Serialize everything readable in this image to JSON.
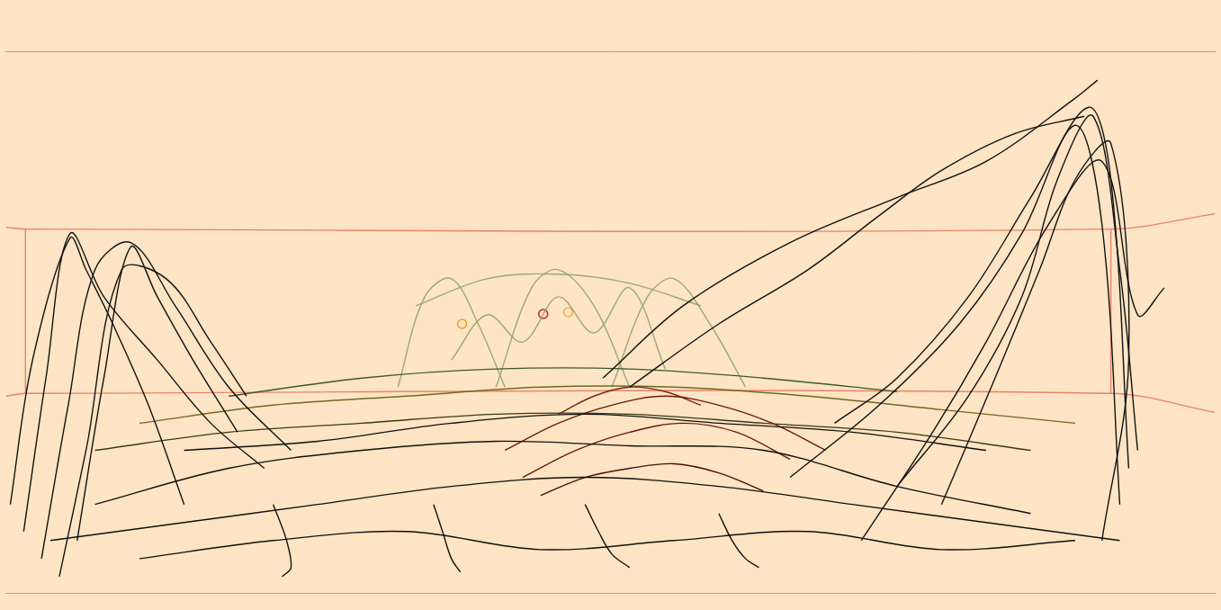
{
  "chart_data": {
    "type": "line",
    "xlim": [
      0,
      1357
    ],
    "ylim": [
      0,
      600
    ],
    "xticks": [
      0,
      1357
    ],
    "yticks": [
      0,
      600
    ],
    "grid": false,
    "tick_labels": false,
    "series": [
      {
        "color": "#111111",
        "x": [
          20,
          45,
          72,
          110,
          170,
          230,
          290
        ],
        "values": [
          68,
          238,
          398,
          328,
          258,
          188,
          138
        ]
      },
      {
        "color": "#111111",
        "x": [
          40,
          70,
          100,
          140,
          190,
          250,
          320
        ],
        "values": [
          38,
          208,
          358,
          388,
          318,
          228,
          158
        ]
      },
      {
        "color": "#111111",
        "x": [
          5,
          30,
          72,
          90,
          120,
          160,
          200
        ],
        "values": [
          98,
          258,
          393,
          358,
          298,
          208,
          98
        ]
      },
      {
        "color": "#111111",
        "x": [
          80,
          110,
          140,
          170,
          210,
          260
        ],
        "values": [
          58,
          238,
          383,
          328,
          258,
          178
        ]
      },
      {
        "color": "#111111",
        "x": [
          60,
          90,
          130,
          180,
          230,
          270
        ],
        "values": [
          18,
          158,
          358,
          348,
          278,
          218
        ]
      },
      {
        "color": "#111111",
        "x": [
          930,
          1000,
          1080,
          1150,
          1215,
          1240,
          1260
        ],
        "values": [
          188,
          238,
          328,
          438,
          538,
          458,
          138
        ]
      },
      {
        "color": "#111111",
        "x": [
          880,
          980,
          1070,
          1140,
          1200,
          1230,
          1250
        ],
        "values": [
          128,
          208,
          298,
          398,
          518,
          408,
          98
        ]
      },
      {
        "color": "#111111",
        "x": [
          1000,
          1080,
          1140,
          1180,
          1220,
          1250,
          1270
        ],
        "values": [
          118,
          218,
          328,
          458,
          528,
          358,
          158
        ]
      },
      {
        "color": "#111111",
        "x": [
          670,
          760,
          880,
          1000,
          1100,
          1200,
          1225
        ],
        "values": [
          238,
          318,
          388,
          438,
          478,
          548,
          568
        ]
      },
      {
        "color": "#111111",
        "x": [
          700,
          800,
          900,
          980,
          1050,
          1130,
          1210
        ],
        "values": [
          228,
          298,
          358,
          418,
          468,
          508,
          528
        ]
      },
      {
        "color": "#111111",
        "x": [
          1050,
          1110,
          1160,
          1200,
          1240,
          1260,
          1230
        ],
        "values": [
          98,
          238,
          358,
          458,
          498,
          258,
          58
        ]
      },
      {
        "color": "#111111",
        "x": [
          960,
          1040,
          1100,
          1170,
          1230,
          1270,
          1300
        ],
        "values": [
          58,
          178,
          278,
          408,
          478,
          308,
          338
        ]
      },
      {
        "color": "#111111",
        "x": [
          100,
          250,
          400,
          550,
          700,
          850,
          1000,
          1150
        ],
        "values": [
          98,
          138,
          158,
          168,
          163,
          158,
          118,
          88
        ]
      },
      {
        "color": "#111111",
        "x": [
          50,
          200,
          350,
          500,
          650,
          800,
          950,
          1100,
          1250
        ],
        "values": [
          58,
          78,
          98,
          118,
          128,
          118,
          98,
          78,
          58
        ]
      },
      {
        "color": "#111111",
        "x": [
          150,
          300,
          450,
          600,
          750,
          900,
          1050,
          1200
        ],
        "values": [
          38,
          58,
          68,
          48,
          58,
          68,
          48,
          58
        ]
      },
      {
        "color": "#111111",
        "x": [
          200,
          350,
          500,
          650,
          800,
          950,
          1100
        ],
        "values": [
          158,
          168,
          188,
          198,
          188,
          178,
          158
        ]
      },
      {
        "color": "#111111",
        "x": [
          480,
          490,
          500,
          510
        ],
        "values": [
          98,
          68,
          38,
          23
        ]
      },
      {
        "color": "#111111",
        "x": [
          650,
          665,
          680,
          700
        ],
        "values": [
          98,
          68,
          43,
          28
        ]
      },
      {
        "color": "#111111",
        "x": [
          800,
          815,
          830,
          845
        ],
        "values": [
          88,
          58,
          38,
          28
        ]
      },
      {
        "color": "#111111",
        "x": [
          300,
          315,
          320,
          310
        ],
        "values": [
          98,
          58,
          28,
          18
        ]
      },
      {
        "color": "#6b1a0a",
        "x": [
          560,
          620,
          680,
          740,
          800,
          860,
          920
        ],
        "values": [
          158,
          188,
          208,
          218,
          208,
          188,
          158
        ]
      },
      {
        "color": "#6b1a0a",
        "x": [
          580,
          640,
          700,
          760,
          820,
          880
        ],
        "values": [
          128,
          158,
          178,
          188,
          178,
          148
        ]
      },
      {
        "color": "#4a0f05",
        "x": [
          600,
          650,
          700,
          750,
          800,
          850
        ],
        "values": [
          108,
          128,
          138,
          143,
          133,
          113
        ]
      },
      {
        "color": "#7a2a10",
        "x": [
          620,
          660,
          700,
          740,
          780
        ],
        "values": [
          198,
          218,
          228,
          223,
          208
        ]
      },
      {
        "color": "#6e6a25",
        "x": [
          150,
          300,
          450,
          600,
          750,
          900,
          1050,
          1200
        ],
        "values": [
          188,
          208,
          218,
          228,
          228,
          218,
          203,
          188
        ]
      },
      {
        "color": "#3c5a28",
        "x": [
          250,
          400,
          550,
          700,
          850,
          1000
        ],
        "values": [
          218,
          238,
          248,
          248,
          238,
          223
        ]
      },
      {
        "color": "#3a3a14",
        "x": [
          100,
          250,
          400,
          550,
          700,
          850,
          1000,
          1150
        ],
        "values": [
          158,
          178,
          188,
          198,
          198,
          188,
          178,
          158
        ]
      },
      {
        "color": "#9aa878",
        "x": [
          440,
          470,
          500,
          530,
          560
        ],
        "values": [
          228,
          328,
          348,
          298,
          228
        ]
      },
      {
        "color": "#9aa878",
        "x": [
          550,
          590,
          620,
          660,
          700
        ],
        "values": [
          228,
          338,
          358,
          318,
          228
        ]
      },
      {
        "color": "#9aa878",
        "x": [
          680,
          720,
          750,
          790,
          830
        ],
        "values": [
          228,
          328,
          348,
          298,
          228
        ]
      },
      {
        "color": "#9aa878",
        "x": [
          460,
          540,
          620,
          700,
          780
        ],
        "values": [
          318,
          348,
          353,
          343,
          318
        ]
      },
      {
        "color": "#9aa878",
        "x": [
          500,
          540,
          580,
          620,
          660,
          700,
          740
        ],
        "values": [
          258,
          308,
          278,
          328,
          288,
          338,
          248
        ]
      },
      {
        "color": "#e8836a",
        "x": [
          0,
          22,
          1240,
          1357
        ],
        "values": [
          405,
          403,
          403,
          420
        ]
      },
      {
        "color": "#e8836a",
        "x": [
          0,
          22,
          1240,
          1357
        ],
        "values": [
          218,
          221,
          221,
          200
        ]
      },
      {
        "color": "#e8836a",
        "x": [
          22,
          22
        ],
        "values": [
          403,
          221
        ]
      },
      {
        "color": "#e8836a",
        "x": [
          1240,
          1240
        ],
        "values": [
          403,
          221
        ]
      },
      {
        "type": "scatter",
        "marker": "circle",
        "color": "#e8a020",
        "x": [
          512
        ],
        "values": [
          298
        ]
      },
      {
        "type": "scatter",
        "marker": "circle",
        "color": "#cc2020",
        "x": [
          603
        ],
        "values": [
          309
        ]
      },
      {
        "type": "scatter",
        "marker": "circle",
        "color": "#f0b040",
        "x": [
          631
        ],
        "values": [
          311
        ]
      }
    ]
  }
}
